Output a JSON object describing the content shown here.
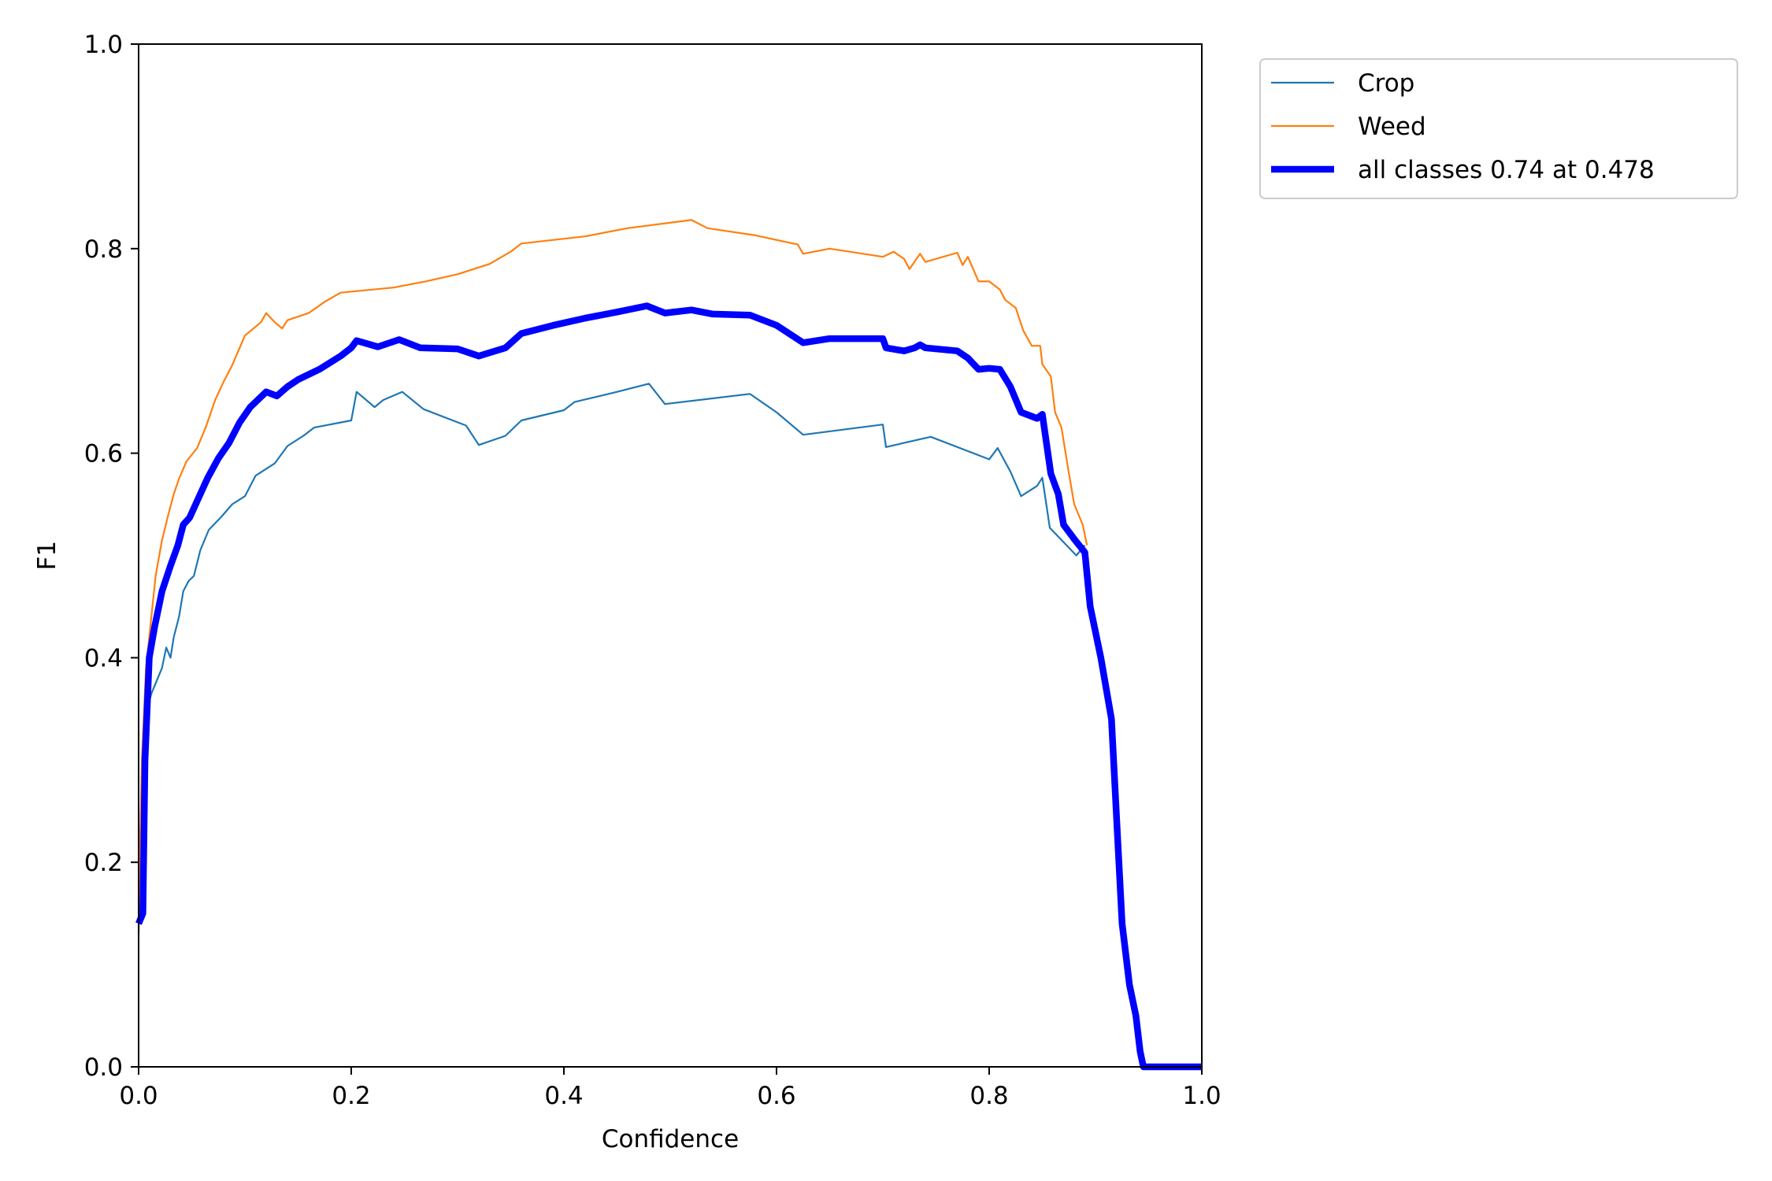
{
  "chart_data": {
    "type": "line",
    "title": "",
    "xlabel": "Confidence",
    "ylabel": "F1",
    "xlim": [
      0,
      1
    ],
    "ylim": [
      0,
      1
    ],
    "xticks": [
      "0.0",
      "0.2",
      "0.4",
      "0.6",
      "0.8",
      "1.0"
    ],
    "yticks": [
      "0.0",
      "0.2",
      "0.4",
      "0.6",
      "0.8",
      "1.0"
    ],
    "grid": false,
    "legend_position": "outside-top-right",
    "series": [
      {
        "name": "Crop",
        "color": "#1f77b4",
        "width": "thin",
        "points": [
          [
            0.0,
            0.13
          ],
          [
            0.002,
            0.22
          ],
          [
            0.005,
            0.3
          ],
          [
            0.008,
            0.35
          ],
          [
            0.012,
            0.365
          ],
          [
            0.018,
            0.38
          ],
          [
            0.022,
            0.39
          ],
          [
            0.026,
            0.41
          ],
          [
            0.03,
            0.4
          ],
          [
            0.033,
            0.42
          ],
          [
            0.038,
            0.44
          ],
          [
            0.042,
            0.465
          ],
          [
            0.047,
            0.475
          ],
          [
            0.052,
            0.48
          ],
          [
            0.058,
            0.505
          ],
          [
            0.066,
            0.525
          ],
          [
            0.078,
            0.538
          ],
          [
            0.088,
            0.55
          ],
          [
            0.1,
            0.558
          ],
          [
            0.11,
            0.578
          ],
          [
            0.128,
            0.59
          ],
          [
            0.14,
            0.607
          ],
          [
            0.155,
            0.617
          ],
          [
            0.165,
            0.625
          ],
          [
            0.2,
            0.632
          ],
          [
            0.205,
            0.66
          ],
          [
            0.222,
            0.645
          ],
          [
            0.23,
            0.652
          ],
          [
            0.248,
            0.66
          ],
          [
            0.268,
            0.643
          ],
          [
            0.308,
            0.627
          ],
          [
            0.32,
            0.608
          ],
          [
            0.345,
            0.617
          ],
          [
            0.36,
            0.632
          ],
          [
            0.4,
            0.642
          ],
          [
            0.41,
            0.65
          ],
          [
            0.45,
            0.66
          ],
          [
            0.48,
            0.668
          ],
          [
            0.495,
            0.648
          ],
          [
            0.575,
            0.658
          ],
          [
            0.6,
            0.64
          ],
          [
            0.625,
            0.618
          ],
          [
            0.7,
            0.628
          ],
          [
            0.703,
            0.606
          ],
          [
            0.745,
            0.616
          ],
          [
            0.8,
            0.594
          ],
          [
            0.808,
            0.605
          ],
          [
            0.82,
            0.582
          ],
          [
            0.83,
            0.558
          ],
          [
            0.845,
            0.568
          ],
          [
            0.85,
            0.576
          ],
          [
            0.857,
            0.527
          ],
          [
            0.882,
            0.5
          ],
          [
            0.89,
            0.51
          ]
        ]
      },
      {
        "name": "Weed",
        "color": "#ff7f0e",
        "width": "thin",
        "points": [
          [
            0.0,
            0.15
          ],
          [
            0.003,
            0.3
          ],
          [
            0.007,
            0.39
          ],
          [
            0.012,
            0.44
          ],
          [
            0.016,
            0.48
          ],
          [
            0.022,
            0.515
          ],
          [
            0.028,
            0.54
          ],
          [
            0.033,
            0.56
          ],
          [
            0.038,
            0.575
          ],
          [
            0.045,
            0.592
          ],
          [
            0.055,
            0.605
          ],
          [
            0.063,
            0.625
          ],
          [
            0.072,
            0.652
          ],
          [
            0.08,
            0.67
          ],
          [
            0.088,
            0.686
          ],
          [
            0.1,
            0.715
          ],
          [
            0.115,
            0.728
          ],
          [
            0.12,
            0.737
          ],
          [
            0.128,
            0.728
          ],
          [
            0.135,
            0.722
          ],
          [
            0.14,
            0.73
          ],
          [
            0.16,
            0.737
          ],
          [
            0.175,
            0.748
          ],
          [
            0.19,
            0.757
          ],
          [
            0.24,
            0.762
          ],
          [
            0.27,
            0.768
          ],
          [
            0.3,
            0.775
          ],
          [
            0.33,
            0.785
          ],
          [
            0.35,
            0.797
          ],
          [
            0.36,
            0.805
          ],
          [
            0.42,
            0.812
          ],
          [
            0.46,
            0.82
          ],
          [
            0.52,
            0.828
          ],
          [
            0.535,
            0.82
          ],
          [
            0.58,
            0.813
          ],
          [
            0.62,
            0.804
          ],
          [
            0.625,
            0.795
          ],
          [
            0.65,
            0.8
          ],
          [
            0.7,
            0.792
          ],
          [
            0.71,
            0.797
          ],
          [
            0.72,
            0.79
          ],
          [
            0.725,
            0.78
          ],
          [
            0.735,
            0.795
          ],
          [
            0.74,
            0.787
          ],
          [
            0.77,
            0.796
          ],
          [
            0.775,
            0.784
          ],
          [
            0.78,
            0.792
          ],
          [
            0.79,
            0.768
          ],
          [
            0.8,
            0.768
          ],
          [
            0.81,
            0.76
          ],
          [
            0.815,
            0.75
          ],
          [
            0.825,
            0.742
          ],
          [
            0.832,
            0.72
          ],
          [
            0.84,
            0.705
          ],
          [
            0.848,
            0.705
          ],
          [
            0.85,
            0.687
          ],
          [
            0.858,
            0.675
          ],
          [
            0.862,
            0.64
          ],
          [
            0.868,
            0.625
          ],
          [
            0.875,
            0.58
          ],
          [
            0.88,
            0.55
          ],
          [
            0.888,
            0.53
          ],
          [
            0.892,
            0.51
          ]
        ]
      },
      {
        "name": "all classes 0.74 at 0.478",
        "color": "#0000ff",
        "width": "thick",
        "points": [
          [
            0.0,
            0.14
          ],
          [
            0.004,
            0.15
          ],
          [
            0.006,
            0.3
          ],
          [
            0.01,
            0.4
          ],
          [
            0.015,
            0.43
          ],
          [
            0.022,
            0.465
          ],
          [
            0.03,
            0.49
          ],
          [
            0.037,
            0.51
          ],
          [
            0.042,
            0.53
          ],
          [
            0.048,
            0.537
          ],
          [
            0.058,
            0.56
          ],
          [
            0.065,
            0.576
          ],
          [
            0.075,
            0.595
          ],
          [
            0.085,
            0.61
          ],
          [
            0.095,
            0.63
          ],
          [
            0.105,
            0.645
          ],
          [
            0.12,
            0.66
          ],
          [
            0.13,
            0.656
          ],
          [
            0.14,
            0.665
          ],
          [
            0.15,
            0.672
          ],
          [
            0.17,
            0.682
          ],
          [
            0.19,
            0.695
          ],
          [
            0.2,
            0.703
          ],
          [
            0.205,
            0.71
          ],
          [
            0.225,
            0.704
          ],
          [
            0.245,
            0.711
          ],
          [
            0.265,
            0.703
          ],
          [
            0.3,
            0.702
          ],
          [
            0.32,
            0.695
          ],
          [
            0.345,
            0.703
          ],
          [
            0.36,
            0.717
          ],
          [
            0.39,
            0.725
          ],
          [
            0.42,
            0.732
          ],
          [
            0.45,
            0.738
          ],
          [
            0.478,
            0.744
          ],
          [
            0.495,
            0.737
          ],
          [
            0.52,
            0.74
          ],
          [
            0.54,
            0.736
          ],
          [
            0.575,
            0.735
          ],
          [
            0.6,
            0.725
          ],
          [
            0.625,
            0.708
          ],
          [
            0.65,
            0.712
          ],
          [
            0.7,
            0.712
          ],
          [
            0.703,
            0.703
          ],
          [
            0.72,
            0.7
          ],
          [
            0.73,
            0.703
          ],
          [
            0.735,
            0.706
          ],
          [
            0.74,
            0.703
          ],
          [
            0.77,
            0.7
          ],
          [
            0.78,
            0.693
          ],
          [
            0.79,
            0.682
          ],
          [
            0.8,
            0.683
          ],
          [
            0.81,
            0.682
          ],
          [
            0.82,
            0.665
          ],
          [
            0.83,
            0.64
          ],
          [
            0.845,
            0.634
          ],
          [
            0.85,
            0.638
          ],
          [
            0.858,
            0.58
          ],
          [
            0.865,
            0.56
          ],
          [
            0.87,
            0.53
          ],
          [
            0.88,
            0.516
          ],
          [
            0.89,
            0.503
          ],
          [
            0.895,
            0.45
          ],
          [
            0.905,
            0.4
          ],
          [
            0.915,
            0.34
          ],
          [
            0.92,
            0.24
          ],
          [
            0.925,
            0.14
          ],
          [
            0.932,
            0.08
          ],
          [
            0.938,
            0.05
          ],
          [
            0.942,
            0.015
          ],
          [
            0.945,
            0.0
          ],
          [
            1.0,
            0.0
          ]
        ]
      }
    ]
  }
}
